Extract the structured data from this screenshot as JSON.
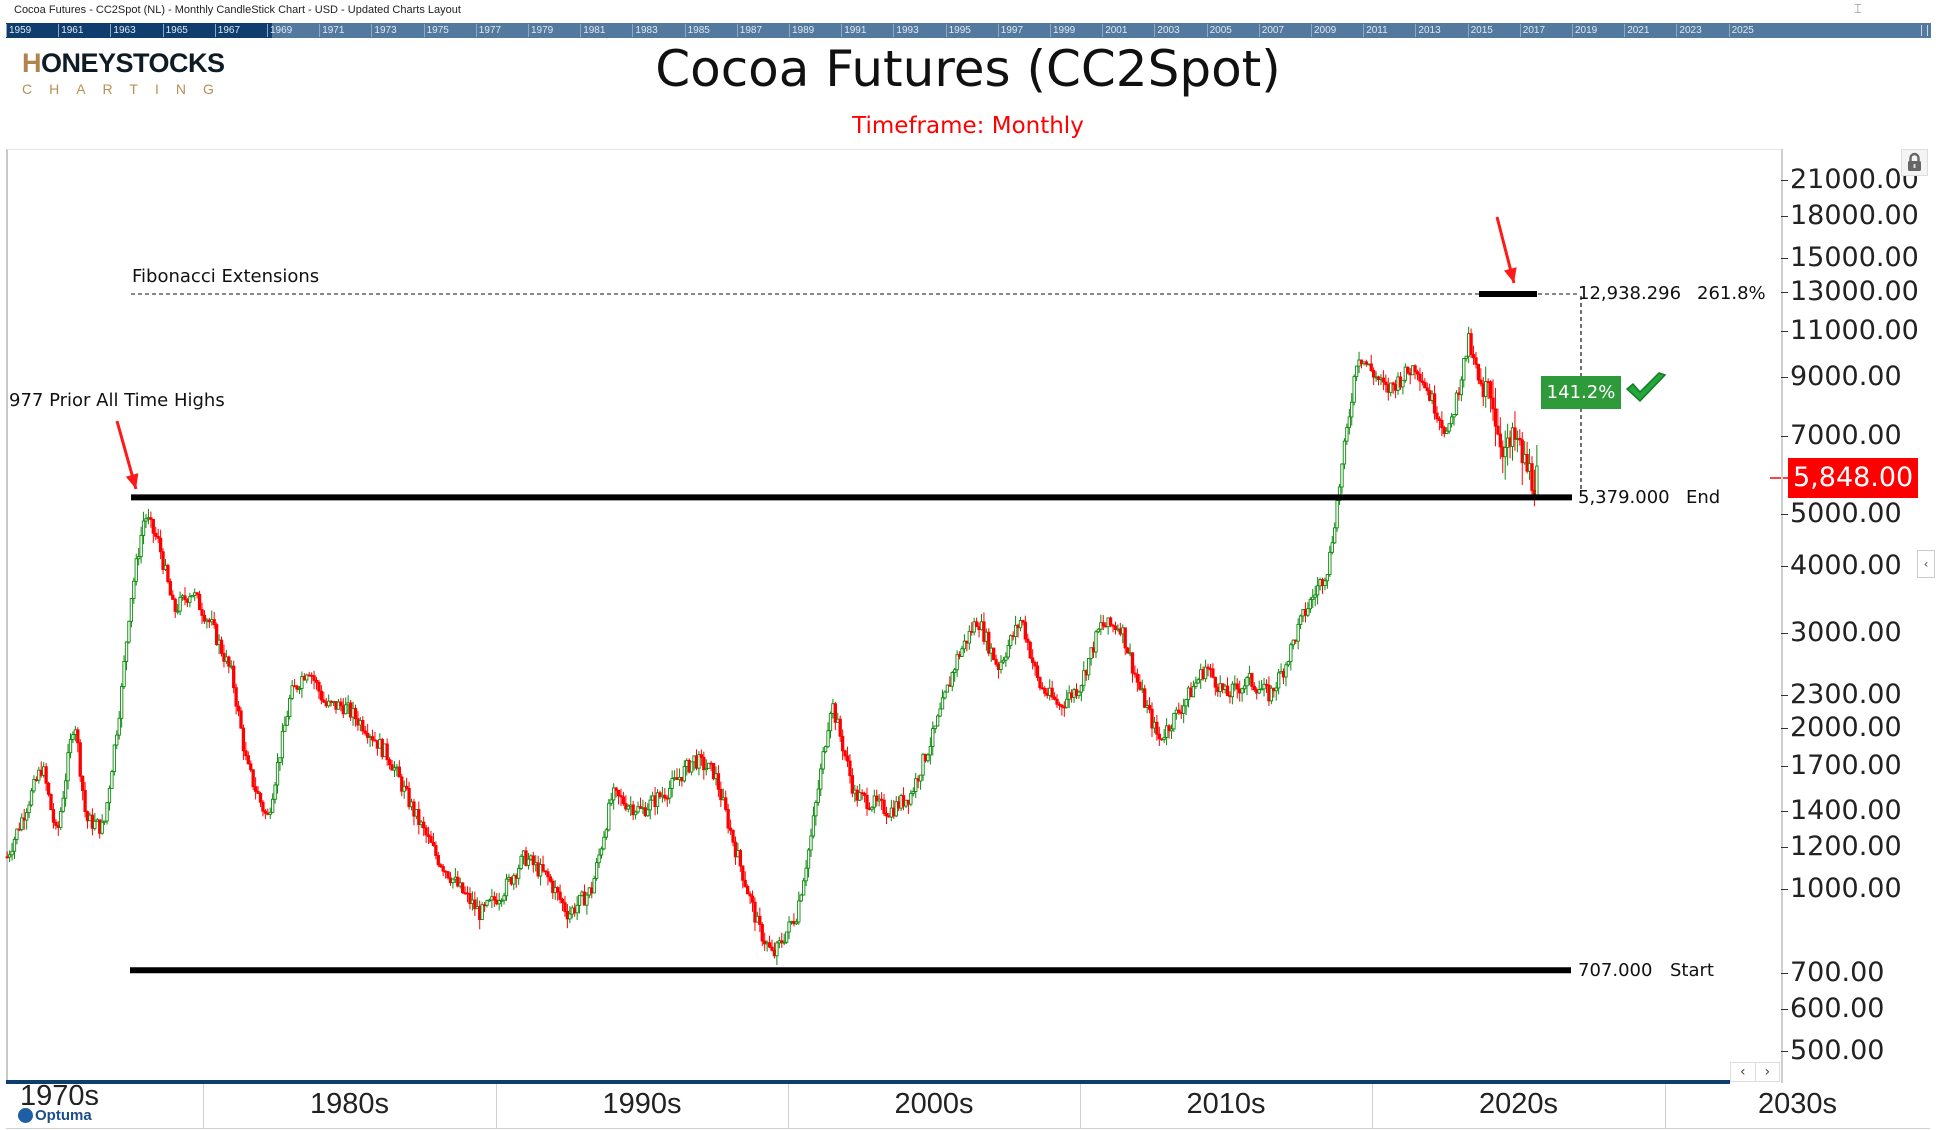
{
  "window": {
    "title": "Cocoa Futures - CC2Spot (NL) - Monthly CandleStick Chart - USD - Updated Charts Layout"
  },
  "timeline": {
    "years": [
      "1959",
      "1961",
      "1963",
      "1965",
      "1967",
      "1969",
      "1971",
      "1973",
      "1975",
      "1977",
      "1979",
      "1981",
      "1983",
      "1985",
      "1987",
      "1989",
      "1991",
      "1993",
      "1995",
      "1997",
      "1999",
      "2001",
      "2003",
      "2005",
      "2007",
      "2009",
      "2011",
      "2013",
      "2015",
      "2017",
      "2019",
      "2021",
      "2023",
      "2025"
    ]
  },
  "logo": {
    "brand_initial": "H",
    "brand_rest": "ONEYSTOCKS",
    "tagline": "CHARTING"
  },
  "header": {
    "title": "Cocoa Futures (CC2Spot)",
    "subtitle": "Timeframe: Monthly"
  },
  "annotations": {
    "fib_label": "Fibonacci Extensions",
    "prior_high_label": "977 Prior All Time Highs",
    "fib_top_value": "12,938.296",
    "fib_top_pct": "261.8%",
    "end_value": "5,379.000",
    "end_label": "End",
    "start_value": "707.000",
    "start_label": "Start",
    "gain_badge": "141.2%"
  },
  "last_price": "5,848.00",
  "footer": {
    "brand": "Optuma"
  },
  "colors": {
    "up": "#0b8a0b",
    "down": "#ff0000",
    "badge": "#2f9a3a",
    "accent_red": "#ff0000",
    "navy": "#0f3e6e"
  },
  "chart_data": {
    "type": "candlestick",
    "title": "Cocoa Futures (CC2Spot)",
    "subtitle": "Timeframe: Monthly",
    "xlabel": "",
    "ylabel": "USD",
    "y_scale": "log",
    "ylim": [
      480,
      22500
    ],
    "x_ticks": [
      "1970s",
      "1980s",
      "1990s",
      "2000s",
      "2010s",
      "2020s",
      "2030s"
    ],
    "y_ticks": [
      21000,
      18000,
      15000,
      13000,
      11000,
      9000,
      7000,
      5000,
      4000,
      3000,
      2300,
      2000,
      1700,
      1400,
      1200,
      1000,
      700,
      600,
      500
    ],
    "y_tick_labels": [
      "21000.00",
      "18000.00",
      "15000.00",
      "13000.00",
      "11000.00",
      "9000.00",
      "7000.00",
      "5000.00",
      "4000.00",
      "3000.00",
      "2300.00",
      "2000.00",
      "1700.00",
      "1400.00",
      "1200.00",
      "1000.00",
      "700.00",
      "600.00",
      "500.00"
    ],
    "grid": false,
    "legend": null,
    "approx_close_path": {
      "x_year": [
        1973.3,
        1974.5,
        1975.0,
        1975.6,
        1976.0,
        1976.6,
        1977.2,
        1977.5,
        1978.0,
        1978.5,
        1979.0,
        1979.6,
        1980.3,
        1981.0,
        1981.5,
        1982.2,
        1983.0,
        1983.6,
        1984.2,
        1984.8,
        1985.6,
        1986.4,
        1987.2,
        1988.0,
        1988.8,
        1989.5,
        1990.3,
        1991.0,
        1991.8,
        1992.5,
        1993.3,
        1994.0,
        1995.0,
        1996.0,
        1996.8,
        1997.5,
        1998.2,
        1999.0,
        1999.5,
        2000.3,
        2000.8,
        2001.5,
        2002.3,
        2002.9,
        2003.5,
        2004.2,
        2005.0,
        2005.8,
        2006.5,
        2007.2,
        2008.0,
        2008.6,
        2009.3,
        2010.0,
        2010.7,
        2011.4,
        2012.0,
        2012.7,
        2013.5,
        2014.3,
        2015.0,
        2015.8,
        2016.5,
        2017.0,
        2017.6,
        2018.5,
        2019.5,
        2020.5,
        2021.5,
        2022.6,
        2023.3,
        2023.8,
        2024.0,
        2024.3,
        2024.6,
        2024.9,
        2025.2,
        2025.5,
        2025.7
      ],
      "close": [
        1150,
        1700,
        1250,
        2100,
        1350,
        1300,
        2300,
        3400,
        5000,
        4400,
        3300,
        3600,
        3100,
        2500,
        1700,
        1350,
        2300,
        2600,
        2200,
        2200,
        2000,
        1750,
        1400,
        1150,
        1000,
        900,
        1000,
        1150,
        1050,
        900,
        1000,
        1500,
        1400,
        1550,
        1750,
        1650,
        1200,
        850,
        750,
        900,
        1250,
        2250,
        1500,
        1450,
        1400,
        1500,
        1950,
        2700,
        3200,
        2600,
        3200,
        2400,
        2200,
        2400,
        3100,
        3100,
        2400,
        1900,
        2200,
        2600,
        2300,
        2450,
        2300,
        2600,
        3200,
        4000,
        10000,
        8500,
        9500,
        7000,
        10500,
        8000,
        9000,
        7200,
        6500,
        6900,
        6200,
        5848,
        5848
      ]
    },
    "annotations": [
      {
        "type": "hline",
        "label": "707.000 Start",
        "value": 707.0
      },
      {
        "type": "hline",
        "label": "5,379.000 End",
        "value": 5379.0
      },
      {
        "type": "fib_extension",
        "label": "12,938.296 261.8%",
        "value": 12938.296
      },
      {
        "type": "text",
        "label": "Fibonacci Extensions"
      },
      {
        "type": "text",
        "label": "977 Prior All Time Highs"
      },
      {
        "type": "badge",
        "label": "141.2%"
      },
      {
        "type": "last_price",
        "value": 5848.0
      }
    ]
  }
}
